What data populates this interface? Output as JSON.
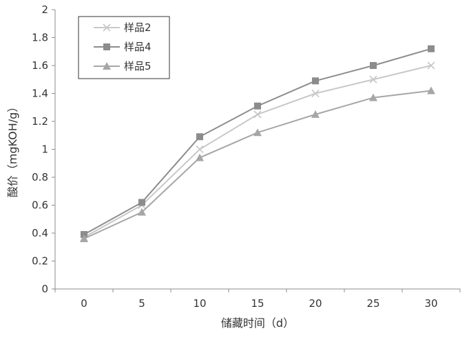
{
  "chart_data": {
    "type": "line",
    "xlabel": "储藏时间（d）",
    "ylabel": "酸价（mgKOH/g）",
    "x": [
      0,
      5,
      10,
      15,
      20,
      25,
      30
    ],
    "xticks": [
      "0",
      "5",
      "10",
      "15",
      "20",
      "25",
      "30"
    ],
    "ylim": [
      0,
      2
    ],
    "yticks": [
      "0",
      "0.2",
      "0.4",
      "0.6",
      "0.8",
      "1",
      "1.2",
      "1.4",
      "1.6",
      "1.8",
      "2"
    ],
    "grid": false,
    "legend_position": "top-left",
    "series": [
      {
        "name": "样品2",
        "marker": "x",
        "color": "#c8c8c8",
        "values": [
          0.37,
          0.6,
          1.0,
          1.25,
          1.4,
          1.5,
          1.6
        ]
      },
      {
        "name": "样品4",
        "marker": "square",
        "color": "#8c8c8c",
        "values": [
          0.39,
          0.62,
          1.09,
          1.31,
          1.49,
          1.6,
          1.72
        ]
      },
      {
        "name": "样品5",
        "marker": "triangle",
        "color": "#a6a6a6",
        "values": [
          0.36,
          0.55,
          0.94,
          1.12,
          1.25,
          1.37,
          1.42
        ]
      }
    ]
  }
}
